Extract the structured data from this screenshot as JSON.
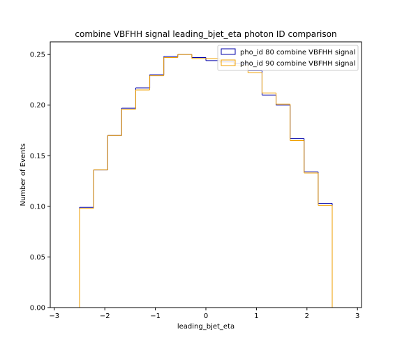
{
  "chart_data": {
    "type": "histogram-step",
    "title": "combine VBFHH signal leading_bjet_eta photon ID comparison",
    "xlabel": "leading_bjet_eta",
    "ylabel": "Number of Events",
    "xlim": [
      -3.08,
      3.08
    ],
    "ylim": [
      0,
      0.2625
    ],
    "xticks": [
      -3,
      -2,
      -1,
      0,
      1,
      2,
      3
    ],
    "xtick_labels": [
      "−3",
      "−2",
      "−1",
      "0",
      "1",
      "2",
      "3"
    ],
    "yticks": [
      0,
      0.05,
      0.1,
      0.15,
      0.2,
      0.25
    ],
    "ytick_labels": [
      "0.00",
      "0.05",
      "0.10",
      "0.15",
      "0.20",
      "0.25"
    ],
    "legend_position": "top-right",
    "grid": false,
    "bin_edges": [
      -2.5,
      -2.222,
      -1.944,
      -1.667,
      -1.389,
      -1.111,
      -0.833,
      -0.556,
      -0.278,
      0,
      0.278,
      0.556,
      0.833,
      1.111,
      1.389,
      1.667,
      1.944,
      2.222,
      2.5
    ],
    "series": [
      {
        "name": "pho_id 80 combine VBFHH signal",
        "color": "#0000aa",
        "values": [
          0.099,
          0.136,
          0.17,
          0.197,
          0.217,
          0.23,
          0.248,
          0.25,
          0.247,
          0.244,
          0.243,
          0.241,
          0.234,
          0.21,
          0.2,
          0.167,
          0.134,
          0.103
        ]
      },
      {
        "name": "pho_id 90 combine VBFHH signal",
        "color": "#f0a000",
        "values": [
          0.098,
          0.136,
          0.17,
          0.196,
          0.215,
          0.229,
          0.247,
          0.25,
          0.246,
          0.246,
          0.242,
          0.239,
          0.232,
          0.212,
          0.201,
          0.165,
          0.133,
          0.101
        ]
      }
    ]
  }
}
